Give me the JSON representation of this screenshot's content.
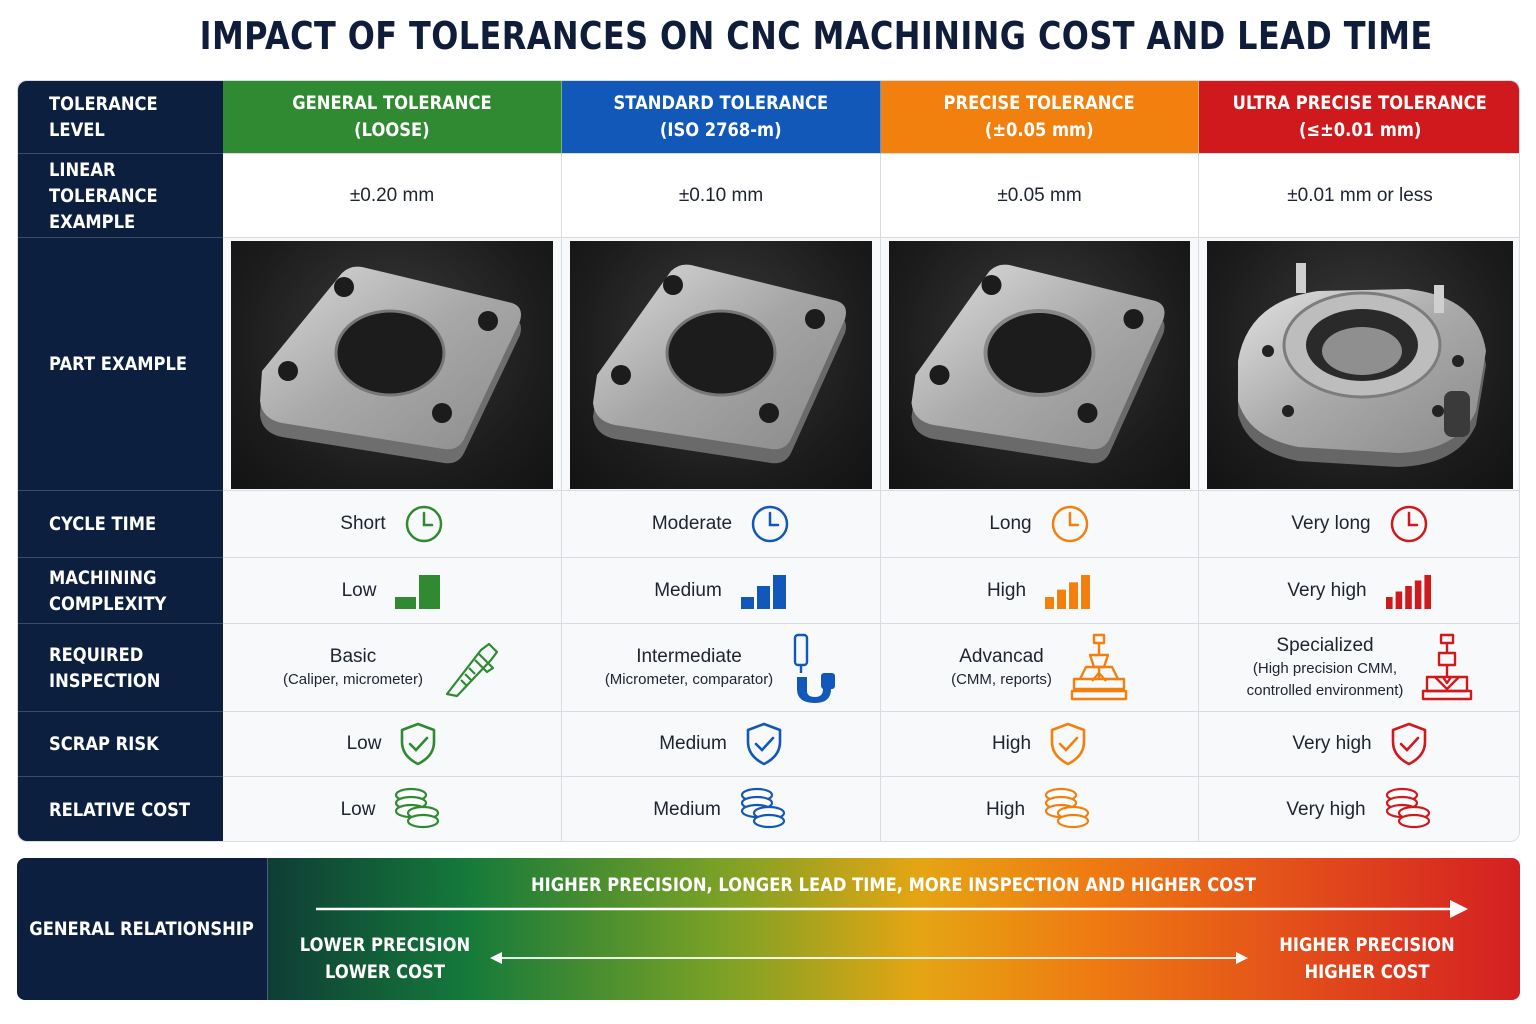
{
  "title": "IMPACT OF TOLERANCES ON CNC MACHINING COST AND LEAD TIME",
  "row_headers": {
    "tolerance_level": [
      "TOLERANCE",
      "LEVEL"
    ],
    "linear_example": [
      "LINEAR TOLERANCE",
      "EXAMPLE"
    ],
    "part_example": [
      "PART EXAMPLE"
    ],
    "cycle_time": [
      "CYCLE TIME"
    ],
    "complexity": [
      "MACHINING",
      "COMPLEXITY"
    ],
    "inspection": [
      "REQUIRED",
      "INSPECTION"
    ],
    "scrap": [
      "SCRAP RISK"
    ],
    "cost": [
      "RELATIVE COST"
    ]
  },
  "columns": [
    {
      "key": "general",
      "color": "#2f8a32",
      "head": [
        "GENERAL TOLERANCE",
        "(LOOSE)"
      ],
      "linear": "±0.20 mm",
      "cycle": "Short",
      "complexity": "Low",
      "complexity_level": 1,
      "inspection_main": "Basic",
      "inspection_sub": [
        "(Caliper, micrometer)"
      ],
      "scrap": "Low",
      "cost": "Low",
      "inspection_icon": "caliper-icon"
    },
    {
      "key": "standard",
      "color": "#1158b8",
      "head": [
        "STANDARD TOLERANCE",
        "(ISO 2768-m)"
      ],
      "linear": "±0.10 mm",
      "cycle": "Moderate",
      "complexity": "Medium",
      "complexity_level": 2,
      "inspection_main": "Intermediate",
      "inspection_sub": [
        "(Micrometer, comparator)"
      ],
      "scrap": "Medium",
      "cost": "Medium",
      "inspection_icon": "micrometer-icon"
    },
    {
      "key": "precise",
      "color": "#f2800f",
      "head": [
        "PRECISE TOLERANCE",
        "(±0.05 mm)"
      ],
      "linear": "±0.05 mm",
      "cycle": "Long",
      "complexity": "High",
      "complexity_level": 3,
      "inspection_main": "Advancad",
      "inspection_sub": [
        "(CMM, reports)"
      ],
      "scrap": "High",
      "cost": "High",
      "inspection_icon": "cmm-icon"
    },
    {
      "key": "ultra",
      "color": "#d0191c",
      "head": [
        "ULTRA PRECISE TOLERANCE",
        "(≤±0.01 mm)"
      ],
      "linear": "±0.01 mm or less",
      "cycle": "Very long",
      "complexity": "Very high",
      "complexity_level": 4,
      "inspection_main": "Specialized",
      "inspection_sub": [
        "(High precision CMM,",
        "controlled environment)"
      ],
      "scrap": "Very high",
      "cost": "Very high",
      "inspection_icon": "cmm-icon"
    }
  ],
  "relationship": {
    "head": "GENERAL RELATIONSHIP",
    "top": "HIGHER PRECISION, LONGER LEAD TIME, MORE INSPECTION AND HIGHER COST",
    "left": [
      "LOWER PRECISION",
      "LOWER COST"
    ],
    "right": [
      "HIGHER PRECISION",
      "HIGHER COST"
    ]
  }
}
